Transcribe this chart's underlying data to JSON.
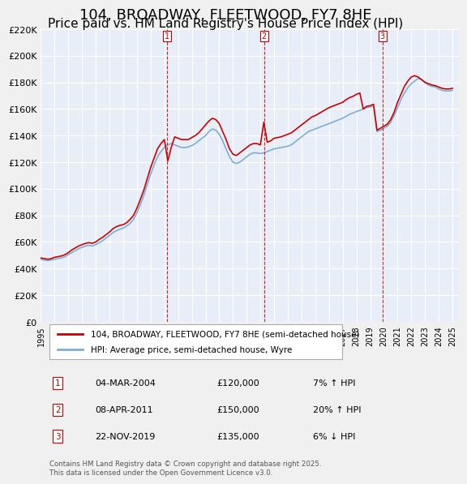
{
  "title": "104, BROADWAY, FLEETWOOD, FY7 8HE",
  "subtitle": "Price paid vs. HM Land Registry's House Price Index (HPI)",
  "title_fontsize": 13,
  "subtitle_fontsize": 11,
  "ylabel": "",
  "xlabel": "",
  "ylim": [
    0,
    220000
  ],
  "yticks": [
    0,
    20000,
    40000,
    60000,
    80000,
    100000,
    120000,
    140000,
    160000,
    180000,
    200000,
    220000
  ],
  "ytick_labels": [
    "£0",
    "£20K",
    "£40K",
    "£60K",
    "£80K",
    "£100K",
    "£120K",
    "£140K",
    "£160K",
    "£180K",
    "£200K",
    "£220K"
  ],
  "background_color": "#e8eef8",
  "plot_bg_color": "#e8eef8",
  "red_line_color": "#cc0000",
  "blue_line_color": "#7bafd4",
  "sale_line_color": "#cc0000",
  "sales": [
    {
      "date_num": 2004.17,
      "price": 120000,
      "label": "1",
      "date_str": "04-MAR-2004",
      "pct": "7%",
      "dir": "↑"
    },
    {
      "date_num": 2011.27,
      "price": 150000,
      "label": "2",
      "date_str": "08-APR-2011",
      "pct": "20%",
      "dir": "↑"
    },
    {
      "date_num": 2019.9,
      "price": 135000,
      "label": "3",
      "date_str": "22-NOV-2019",
      "pct": "6%",
      "dir": "↓"
    }
  ],
  "legend_label_red": "104, BROADWAY, FLEETWOOD, FY7 8HE (semi-detached house)",
  "legend_label_blue": "HPI: Average price, semi-detached house, Wyre",
  "footnote": "Contains HM Land Registry data © Crown copyright and database right 2025.\nThis data is licensed under the Open Government Licence v3.0.",
  "hpi_data": {
    "years": [
      1995.0,
      1995.25,
      1995.5,
      1995.75,
      1996.0,
      1996.25,
      1996.5,
      1996.75,
      1997.0,
      1997.25,
      1997.5,
      1997.75,
      1998.0,
      1998.25,
      1998.5,
      1998.75,
      1999.0,
      1999.25,
      1999.5,
      1999.75,
      2000.0,
      2000.25,
      2000.5,
      2000.75,
      2001.0,
      2001.25,
      2001.5,
      2001.75,
      2002.0,
      2002.25,
      2002.5,
      2002.75,
      2003.0,
      2003.25,
      2003.5,
      2003.75,
      2004.0,
      2004.25,
      2004.5,
      2004.75,
      2005.0,
      2005.25,
      2005.5,
      2005.75,
      2006.0,
      2006.25,
      2006.5,
      2006.75,
      2007.0,
      2007.25,
      2007.5,
      2007.75,
      2008.0,
      2008.25,
      2008.5,
      2008.75,
      2009.0,
      2009.25,
      2009.5,
      2009.75,
      2010.0,
      2010.25,
      2010.5,
      2010.75,
      2011.0,
      2011.25,
      2011.5,
      2011.75,
      2012.0,
      2012.25,
      2012.5,
      2012.75,
      2013.0,
      2013.25,
      2013.5,
      2013.75,
      2014.0,
      2014.25,
      2014.5,
      2014.75,
      2015.0,
      2015.25,
      2015.5,
      2015.75,
      2016.0,
      2016.25,
      2016.5,
      2016.75,
      2017.0,
      2017.25,
      2017.5,
      2017.75,
      2018.0,
      2018.25,
      2018.5,
      2018.75,
      2019.0,
      2019.25,
      2019.5,
      2019.75,
      2020.0,
      2020.25,
      2020.5,
      2020.75,
      2021.0,
      2021.25,
      2021.5,
      2021.75,
      2022.0,
      2022.25,
      2022.5,
      2022.75,
      2023.0,
      2023.25,
      2023.5,
      2023.75,
      2024.0,
      2024.25,
      2024.5,
      2024.75,
      2025.0
    ],
    "hpi_values": [
      47000,
      46500,
      46000,
      46500,
      47000,
      47500,
      48000,
      49000,
      50500,
      52000,
      53500,
      55000,
      56000,
      57000,
      57500,
      57000,
      58000,
      59500,
      61000,
      63000,
      65000,
      67000,
      68500,
      69500,
      70500,
      72000,
      74000,
      77000,
      82000,
      88000,
      95000,
      103000,
      111000,
      118000,
      124000,
      128000,
      131000,
      133000,
      134000,
      133000,
      132000,
      131000,
      131000,
      131500,
      132500,
      134000,
      136000,
      138000,
      140000,
      143000,
      145000,
      144000,
      141000,
      136000,
      130000,
      124000,
      120000,
      119000,
      120000,
      122000,
      124000,
      126000,
      127000,
      127000,
      126500,
      127000,
      128000,
      129000,
      130000,
      130500,
      131000,
      131500,
      132000,
      133000,
      135000,
      137000,
      139000,
      141000,
      143000,
      144000,
      145000,
      146000,
      147000,
      148000,
      149000,
      150000,
      151000,
      152000,
      153000,
      154500,
      156000,
      157000,
      158000,
      159000,
      160000,
      161000,
      161500,
      162000,
      143000,
      144000,
      145500,
      147000,
      150000,
      155000,
      161000,
      167000,
      172000,
      176000,
      179000,
      181000,
      183000,
      182000,
      180000,
      178000,
      177000,
      176500,
      175000,
      174000,
      173500,
      173500,
      174000
    ],
    "red_values": [
      48000,
      47500,
      47000,
      47500,
      48500,
      49000,
      49500,
      50500,
      52000,
      54000,
      55500,
      57000,
      58000,
      59000,
      59500,
      59000,
      60000,
      62000,
      63500,
      65500,
      67500,
      70000,
      71500,
      72500,
      73000,
      74500,
      77000,
      80000,
      85500,
      92000,
      99000,
      107500,
      116000,
      123000,
      130000,
      134000,
      137000,
      121000,
      131000,
      139000,
      138000,
      137000,
      137000,
      137000,
      138500,
      140000,
      142000,
      145000,
      148000,
      151000,
      153000,
      152000,
      149000,
      143000,
      137000,
      130000,
      126000,
      125000,
      127000,
      129000,
      131000,
      133000,
      134000,
      134000,
      133000,
      150000,
      135000,
      136000,
      138000,
      138500,
      139000,
      140000,
      141000,
      142000,
      144000,
      146000,
      148000,
      150000,
      152000,
      154000,
      155000,
      156500,
      158000,
      159500,
      161000,
      162000,
      163000,
      164000,
      165000,
      167000,
      168500,
      169500,
      171000,
      172000,
      160000,
      162000,
      162500,
      163500,
      144000,
      145500,
      147000,
      148500,
      152000,
      157500,
      165000,
      171000,
      177000,
      181000,
      184000,
      185000,
      184000,
      182000,
      180000,
      179000,
      178000,
      177500,
      176500,
      175500,
      175000,
      175000,
      175500
    ]
  }
}
